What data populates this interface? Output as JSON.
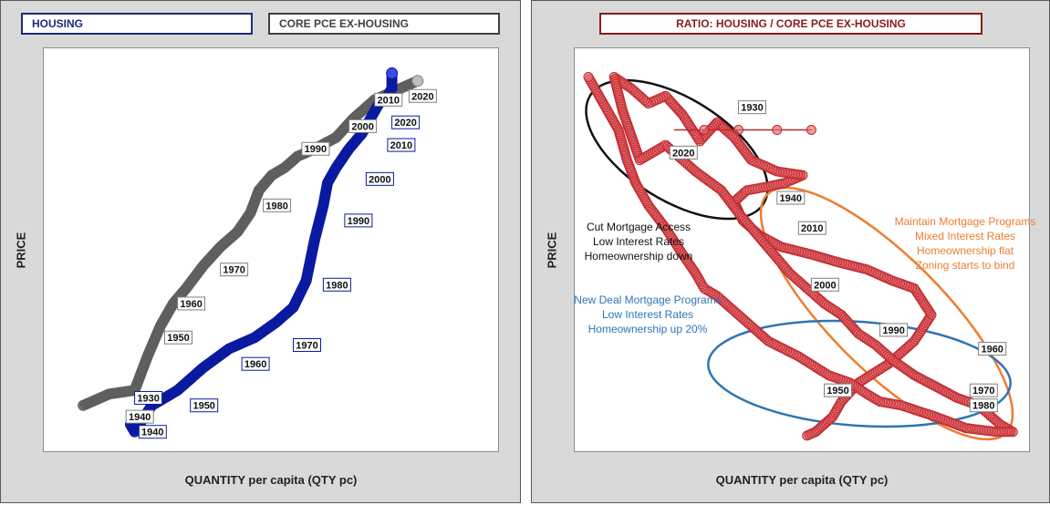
{
  "colors": {
    "housing": "#0a1aa0",
    "core_pce": "#5f5f5f",
    "ratio": "#c0282d",
    "black_ellipse": "#111111",
    "orange": "#ed7d31",
    "blue": "#2e75b6"
  },
  "left_panel": {
    "legend_housing": "HOUSING",
    "legend_core": "CORE PCE EX-HOUSING",
    "ylabel": "PRICE",
    "xlabel": "QUANTITY per capita (QTY pc)"
  },
  "right_panel": {
    "legend_ratio": "RATIO: HOUSING / CORE PCE EX-HOUSING",
    "ylabel": "PRICE",
    "xlabel": "QUANTITY per capita (QTY pc)",
    "annotations": {
      "black": [
        "Cut Mortgage Access",
        "Low Interest Rates",
        "Homeownership down"
      ],
      "blue": [
        "New Deal Mortgage Programs",
        "Low Interest Rates",
        "Homeownership up 20%"
      ],
      "orange": [
        "Maintain Mortgage Programs",
        "Mixed Interest Rates",
        "Homeownership flat",
        "Zoning starts to bind"
      ]
    }
  },
  "chart_data": [
    {
      "type": "scatter",
      "xlabel": "QUANTITY per capita (QTY pc)",
      "ylabel": "PRICE",
      "grid": false,
      "series": [
        {
          "name": "HOUSING",
          "color": "#0a1aa0",
          "x": [
            0.17,
            0.18,
            0.22,
            0.28,
            0.34,
            0.4,
            0.46,
            0.51,
            0.55,
            0.58,
            0.6,
            0.62,
            0.63,
            0.65,
            0.68,
            0.71,
            0.73,
            0.75,
            0.77,
            0.78,
            0.78
          ],
          "y": [
            0.04,
            0.02,
            0.09,
            0.13,
            0.19,
            0.24,
            0.27,
            0.31,
            0.35,
            0.42,
            0.53,
            0.62,
            0.68,
            0.72,
            0.77,
            0.81,
            0.85,
            0.89,
            0.91,
            0.93,
            0.97
          ],
          "labels": [
            {
              "text": "1930",
              "x": 0.18,
              "y": 0.11
            },
            {
              "text": "1940",
              "x": 0.19,
              "y": 0.02
            },
            {
              "text": "1950",
              "x": 0.31,
              "y": 0.09
            },
            {
              "text": "1960",
              "x": 0.43,
              "y": 0.2
            },
            {
              "text": "1970",
              "x": 0.55,
              "y": 0.25
            },
            {
              "text": "1980",
              "x": 0.62,
              "y": 0.41
            },
            {
              "text": "1990",
              "x": 0.67,
              "y": 0.58
            },
            {
              "text": "2000",
              "x": 0.72,
              "y": 0.69
            },
            {
              "text": "2010",
              "x": 0.77,
              "y": 0.78
            },
            {
              "text": "2020",
              "x": 0.78,
              "y": 0.84
            }
          ]
        },
        {
          "name": "CORE PCE EX-HOUSING",
          "color": "#5f5f5f",
          "x": [
            0.06,
            0.12,
            0.18,
            0.21,
            0.24,
            0.27,
            0.3,
            0.34,
            0.38,
            0.42,
            0.45,
            0.47,
            0.5,
            0.53,
            0.56,
            0.6,
            0.65,
            0.69,
            0.74,
            0.8,
            0.84
          ],
          "y": [
            0.09,
            0.12,
            0.13,
            0.22,
            0.3,
            0.36,
            0.4,
            0.46,
            0.51,
            0.55,
            0.6,
            0.66,
            0.7,
            0.72,
            0.75,
            0.77,
            0.8,
            0.85,
            0.9,
            0.93,
            0.95
          ],
          "labels": [
            {
              "text": "1940",
              "x": 0.16,
              "y": 0.06
            },
            {
              "text": "1950",
              "x": 0.25,
              "y": 0.27
            },
            {
              "text": "1960",
              "x": 0.28,
              "y": 0.36
            },
            {
              "text": "1970",
              "x": 0.38,
              "y": 0.45
            },
            {
              "text": "1980",
              "x": 0.48,
              "y": 0.62
            },
            {
              "text": "1990",
              "x": 0.57,
              "y": 0.77
            },
            {
              "text": "2000",
              "x": 0.68,
              "y": 0.83
            },
            {
              "text": "2010",
              "x": 0.74,
              "y": 0.9
            },
            {
              "text": "2020",
              "x": 0.82,
              "y": 0.91
            }
          ]
        }
      ]
    },
    {
      "type": "scatter",
      "xlabel": "QUANTITY per capita (QTY pc)",
      "ylabel": "PRICE",
      "grid": false,
      "series": [
        {
          "name": "RATIO: HOUSING / CORE PCE EX-HOUSING",
          "color": "#c0282d",
          "x": [
            0.51,
            0.53,
            0.55,
            0.57,
            0.59,
            0.63,
            0.7,
            0.76,
            0.8,
            0.76,
            0.71,
            0.65,
            0.58,
            0.52,
            0.45,
            0.4,
            0.36,
            0.34,
            0.37,
            0.42,
            0.46,
            0.5,
            0.44,
            0.38,
            0.34,
            0.3,
            0.26,
            0.22,
            0.18,
            0.14,
            0.1,
            0.06,
            0.08,
            0.12,
            0.18,
            0.25,
            0.31,
            0.35,
            0.38,
            0.41,
            0.44,
            0.47,
            0.51,
            0.55,
            0.59,
            0.63,
            0.67,
            0.71,
            0.76,
            0.81,
            0.86,
            0.91,
            0.96,
            0.99,
            0.95,
            0.88,
            0.81,
            0.73,
            0.68,
            0.65,
            0.61,
            0.56,
            0.49,
            0.42,
            0.37,
            0.33,
            0.3,
            0.27,
            0.25,
            0.22,
            0.18,
            0.14,
            0.11,
            0.09,
            0.07,
            0.04,
            0.02,
            0.0
          ],
          "y": [
            0.01,
            0.02,
            0.04,
            0.06,
            0.1,
            0.15,
            0.2,
            0.26,
            0.33,
            0.4,
            0.42,
            0.45,
            0.47,
            0.49,
            0.51,
            0.54,
            0.58,
            0.63,
            0.66,
            0.67,
            0.68,
            0.7,
            0.71,
            0.74,
            0.8,
            0.84,
            0.79,
            0.86,
            0.91,
            0.89,
            0.93,
            0.96,
            0.87,
            0.74,
            0.78,
            0.71,
            0.66,
            0.6,
            0.56,
            0.52,
            0.48,
            0.44,
            0.4,
            0.36,
            0.33,
            0.28,
            0.25,
            0.21,
            0.17,
            0.14,
            0.11,
            0.09,
            0.04,
            0.02,
            0.02,
            0.03,
            0.06,
            0.09,
            0.1,
            0.12,
            0.15,
            0.17,
            0.22,
            0.26,
            0.31,
            0.35,
            0.38,
            0.4,
            0.44,
            0.49,
            0.56,
            0.62,
            0.68,
            0.74,
            0.82,
            0.88,
            0.92,
            0.96
          ],
          "labels": [
            {
              "text": "1930",
              "x": 0.35,
              "y": 0.88
            },
            {
              "text": "1940",
              "x": 0.44,
              "y": 0.64
            },
            {
              "text": "1950",
              "x": 0.55,
              "y": 0.13
            },
            {
              "text": "1960",
              "x": 0.91,
              "y": 0.24
            },
            {
              "text": "1970",
              "x": 0.89,
              "y": 0.13
            },
            {
              "text": "1980",
              "x": 0.89,
              "y": 0.09
            },
            {
              "text": "1990",
              "x": 0.68,
              "y": 0.29
            },
            {
              "text": "2000",
              "x": 0.52,
              "y": 0.41
            },
            {
              "text": "2010",
              "x": 0.49,
              "y": 0.56
            },
            {
              "text": "2020",
              "x": 0.19,
              "y": 0.76
            }
          ]
        }
      ]
    }
  ]
}
